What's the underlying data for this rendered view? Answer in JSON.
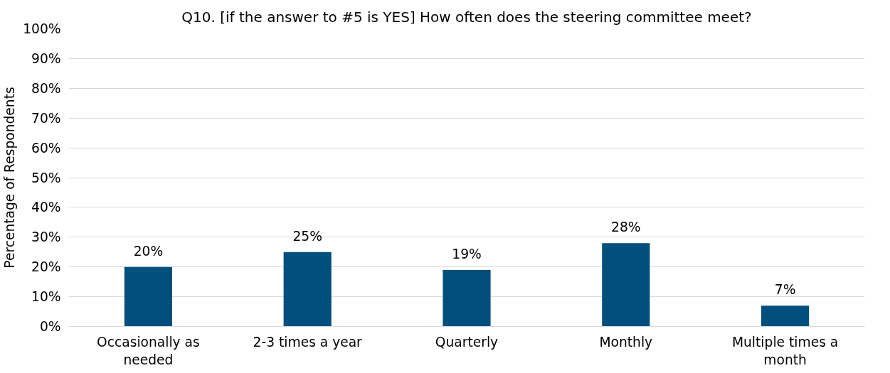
{
  "chart_data": {
    "type": "bar",
    "title": "Q10. [if the answer to #5 is YES] How often does the steering committee meet?",
    "ylabel": "Percentage of Respondents",
    "categories": [
      "Occasionally as needed",
      "2-3 times a year",
      "Quarterly",
      "Monthly",
      "Multiple times a month"
    ],
    "values": [
      20,
      25,
      19,
      28,
      7
    ],
    "color": "#004f7c",
    "data_labels": true,
    "value_labels": [
      "20%",
      "25%",
      "19%",
      "28%",
      "7%"
    ],
    "ylim": [
      0,
      100
    ],
    "yticks": [
      {
        "value": 0,
        "label": "0%"
      },
      {
        "value": 10,
        "label": "10%"
      },
      {
        "value": 20,
        "label": "20%"
      },
      {
        "value": 30,
        "label": "30%"
      },
      {
        "value": 40,
        "label": "40%"
      },
      {
        "value": 50,
        "label": "50%"
      },
      {
        "value": 60,
        "label": "60%"
      },
      {
        "value": 70,
        "label": "70%"
      },
      {
        "value": 80,
        "label": "80%"
      },
      {
        "value": 90,
        "label": "90%"
      },
      {
        "value": 100,
        "label": "100%"
      }
    ],
    "grid": "y"
  }
}
